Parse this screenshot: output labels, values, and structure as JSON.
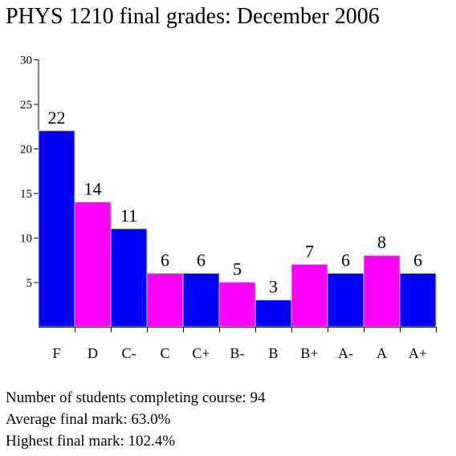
{
  "chart_data": {
    "type": "bar",
    "title": "PHYS 1210 final grades: December 2006",
    "categories": [
      "F",
      "D",
      "C-",
      "C",
      "C+",
      "B-",
      "B",
      "B+",
      "A-",
      "A",
      "A+"
    ],
    "values": [
      22,
      14,
      11,
      6,
      6,
      5,
      3,
      7,
      6,
      8,
      6
    ],
    "xlabel": "",
    "ylabel": "",
    "ylim": [
      0,
      30
    ],
    "yticks": [
      5,
      10,
      15,
      20,
      25,
      30
    ],
    "grid": false,
    "colors": [
      "#0000ff",
      "#ff00ff"
    ],
    "bar_outline": "#cccccc"
  },
  "stats": [
    {
      "label": "Number of students completing course:",
      "value": "94"
    },
    {
      "label": "Average final mark:",
      "value": "63.0%"
    },
    {
      "label": "Highest final mark:",
      "value": "102.4%"
    }
  ]
}
